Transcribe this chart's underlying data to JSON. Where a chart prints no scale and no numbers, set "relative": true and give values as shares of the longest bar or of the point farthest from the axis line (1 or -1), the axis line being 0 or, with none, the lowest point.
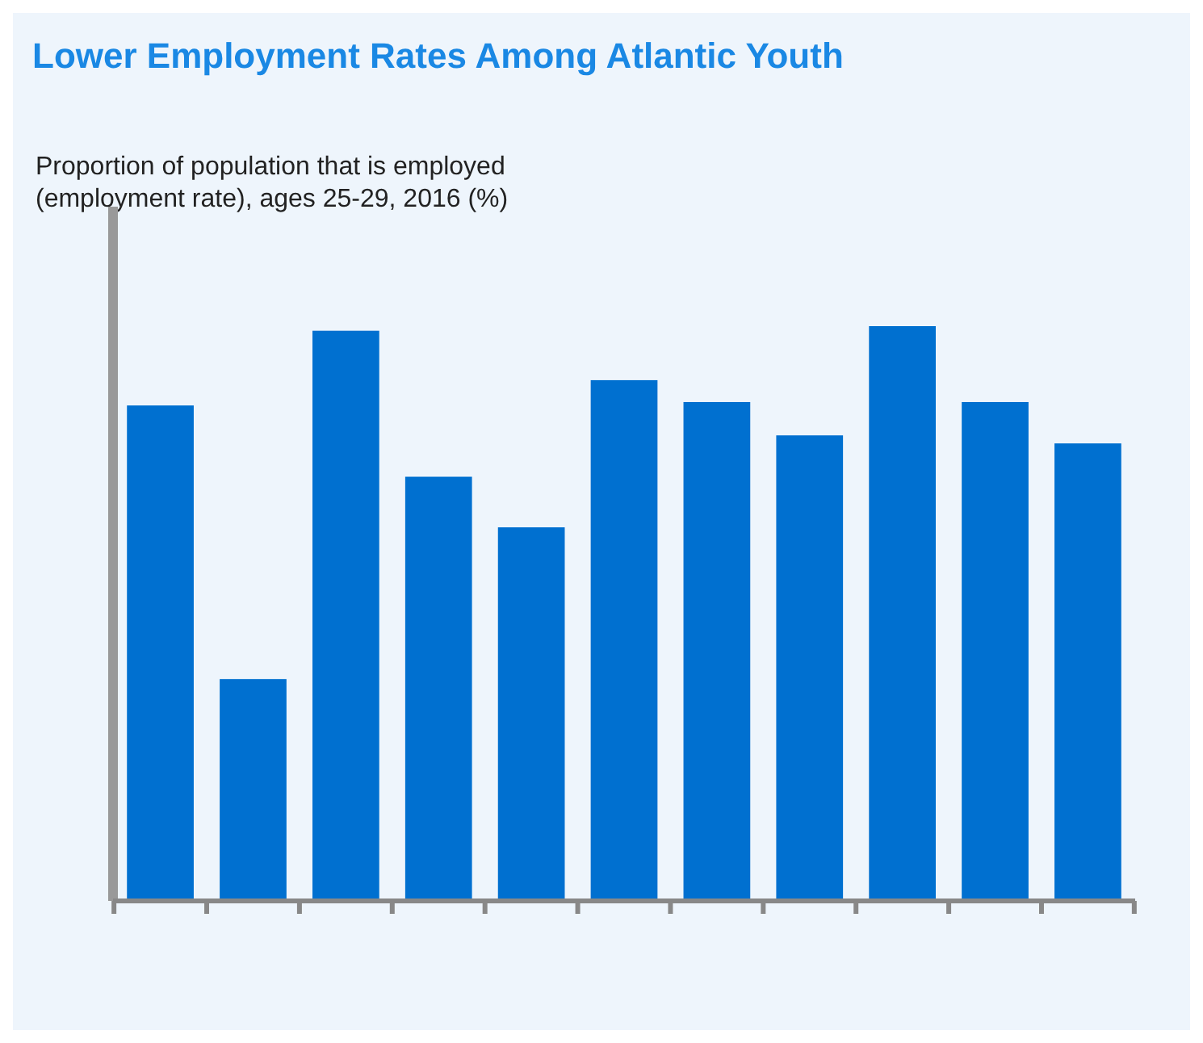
{
  "chart_data": {
    "type": "bar",
    "title": "Lower Employment Rates Among Atlantic Youth",
    "subtitle": "Proportion of population that is employed (employment rate), ages 25-29, 2016 (%)",
    "categories": [
      null,
      null,
      null,
      null,
      null,
      null,
      null,
      null,
      null,
      null,
      null
    ],
    "values": [
      0.862,
      0.386,
      0.992,
      0.738,
      0.65,
      0.906,
      0.868,
      0.81,
      1,
      0.868,
      0.796
    ],
    "color": "#0070d0",
    "relative": true
  }
}
